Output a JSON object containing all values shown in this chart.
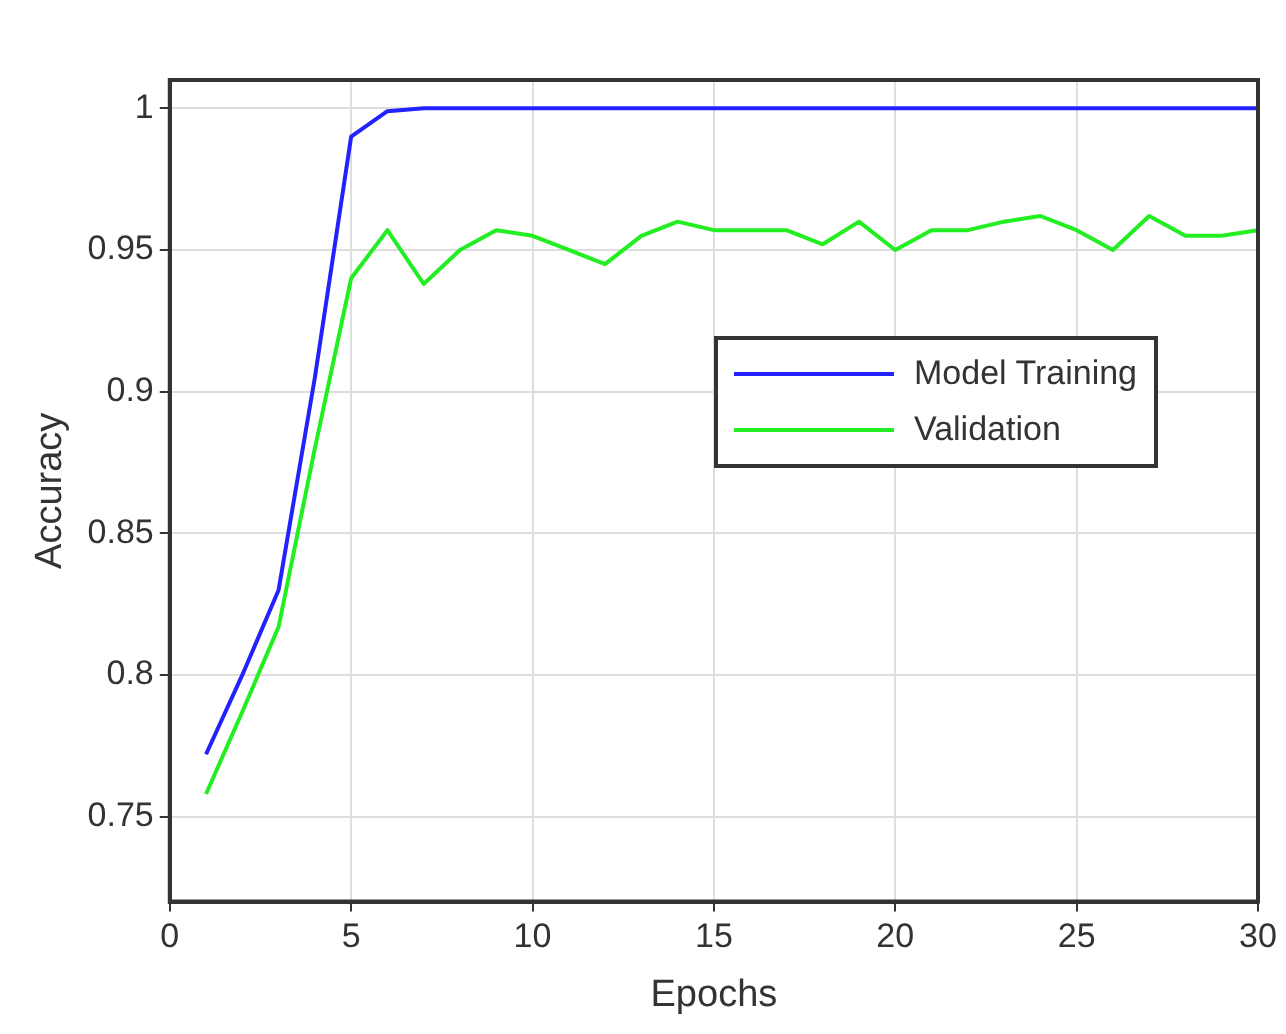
{
  "chart_data": {
    "type": "line",
    "xlabel": "Epochs",
    "ylabel": "Accuracy",
    "x": [
      1,
      2,
      3,
      4,
      5,
      6,
      7,
      8,
      9,
      10,
      11,
      12,
      13,
      14,
      15,
      16,
      17,
      18,
      19,
      20,
      21,
      22,
      23,
      24,
      25,
      26,
      27,
      28,
      29,
      30
    ],
    "series": [
      {
        "name": "Model Training",
        "color": "#2222ff",
        "values": [
          0.772,
          0.8,
          0.83,
          0.905,
          0.99,
          0.999,
          1,
          1,
          1,
          1,
          1,
          1,
          1,
          1,
          1,
          1,
          1,
          1,
          1,
          1,
          1,
          1,
          1,
          1,
          1,
          1,
          1,
          1,
          1,
          1
        ]
      },
      {
        "name": "Validation",
        "color": "#22ee22",
        "values": [
          0.758,
          0.787,
          0.817,
          0.88,
          0.94,
          0.957,
          0.938,
          0.95,
          0.957,
          0.955,
          0.95,
          0.945,
          0.955,
          0.96,
          0.957,
          0.957,
          0.957,
          0.952,
          0.96,
          0.95,
          0.957,
          0.957,
          0.96,
          0.962,
          0.957,
          0.95,
          0.962,
          0.955,
          0.955,
          0.957
        ]
      }
    ],
    "xlim": [
      0,
      30
    ],
    "xticks": [
      0,
      5,
      10,
      15,
      20,
      25,
      30
    ],
    "ylim": [
      0.72,
      1.01
    ],
    "yticks": [
      0.75,
      0.8,
      0.85,
      0.9,
      0.95,
      1
    ],
    "grid": true,
    "legend": "right",
    "marker": "none",
    "line_style": "solid"
  }
}
